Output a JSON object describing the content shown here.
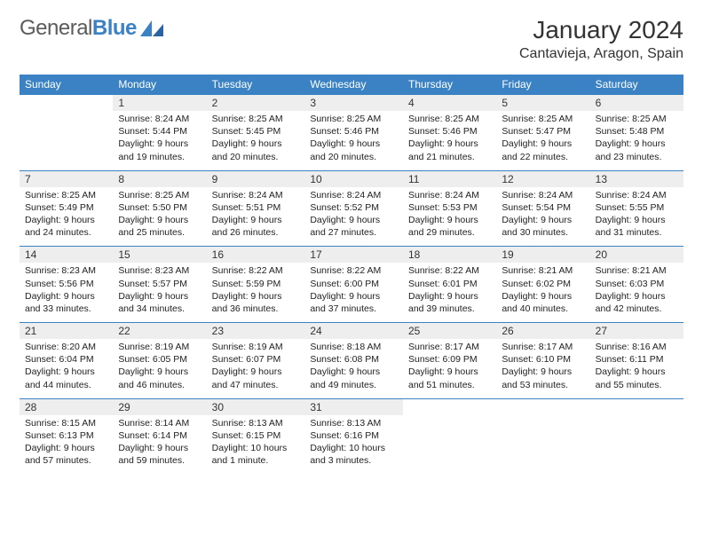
{
  "logo": {
    "text_gray": "General",
    "text_blue": "Blue"
  },
  "title": "January 2024",
  "location": "Cantavieja, Aragon, Spain",
  "colors": {
    "header_bg": "#3b82c4",
    "header_text": "#ffffff",
    "daynum_bg": "#eeeeee",
    "border": "#3b82c4",
    "body_text": "#222222",
    "title_text": "#333333",
    "logo_gray": "#5b5b5b",
    "logo_blue": "#3b82c4",
    "page_bg": "#ffffff"
  },
  "day_headers": [
    "Sunday",
    "Monday",
    "Tuesday",
    "Wednesday",
    "Thursday",
    "Friday",
    "Saturday"
  ],
  "weeks": [
    [
      null,
      {
        "n": "1",
        "sr": "Sunrise: 8:24 AM",
        "ss": "Sunset: 5:44 PM",
        "d1": "Daylight: 9 hours",
        "d2": "and 19 minutes."
      },
      {
        "n": "2",
        "sr": "Sunrise: 8:25 AM",
        "ss": "Sunset: 5:45 PM",
        "d1": "Daylight: 9 hours",
        "d2": "and 20 minutes."
      },
      {
        "n": "3",
        "sr": "Sunrise: 8:25 AM",
        "ss": "Sunset: 5:46 PM",
        "d1": "Daylight: 9 hours",
        "d2": "and 20 minutes."
      },
      {
        "n": "4",
        "sr": "Sunrise: 8:25 AM",
        "ss": "Sunset: 5:46 PM",
        "d1": "Daylight: 9 hours",
        "d2": "and 21 minutes."
      },
      {
        "n": "5",
        "sr": "Sunrise: 8:25 AM",
        "ss": "Sunset: 5:47 PM",
        "d1": "Daylight: 9 hours",
        "d2": "and 22 minutes."
      },
      {
        "n": "6",
        "sr": "Sunrise: 8:25 AM",
        "ss": "Sunset: 5:48 PM",
        "d1": "Daylight: 9 hours",
        "d2": "and 23 minutes."
      }
    ],
    [
      {
        "n": "7",
        "sr": "Sunrise: 8:25 AM",
        "ss": "Sunset: 5:49 PM",
        "d1": "Daylight: 9 hours",
        "d2": "and 24 minutes."
      },
      {
        "n": "8",
        "sr": "Sunrise: 8:25 AM",
        "ss": "Sunset: 5:50 PM",
        "d1": "Daylight: 9 hours",
        "d2": "and 25 minutes."
      },
      {
        "n": "9",
        "sr": "Sunrise: 8:24 AM",
        "ss": "Sunset: 5:51 PM",
        "d1": "Daylight: 9 hours",
        "d2": "and 26 minutes."
      },
      {
        "n": "10",
        "sr": "Sunrise: 8:24 AM",
        "ss": "Sunset: 5:52 PM",
        "d1": "Daylight: 9 hours",
        "d2": "and 27 minutes."
      },
      {
        "n": "11",
        "sr": "Sunrise: 8:24 AM",
        "ss": "Sunset: 5:53 PM",
        "d1": "Daylight: 9 hours",
        "d2": "and 29 minutes."
      },
      {
        "n": "12",
        "sr": "Sunrise: 8:24 AM",
        "ss": "Sunset: 5:54 PM",
        "d1": "Daylight: 9 hours",
        "d2": "and 30 minutes."
      },
      {
        "n": "13",
        "sr": "Sunrise: 8:24 AM",
        "ss": "Sunset: 5:55 PM",
        "d1": "Daylight: 9 hours",
        "d2": "and 31 minutes."
      }
    ],
    [
      {
        "n": "14",
        "sr": "Sunrise: 8:23 AM",
        "ss": "Sunset: 5:56 PM",
        "d1": "Daylight: 9 hours",
        "d2": "and 33 minutes."
      },
      {
        "n": "15",
        "sr": "Sunrise: 8:23 AM",
        "ss": "Sunset: 5:57 PM",
        "d1": "Daylight: 9 hours",
        "d2": "and 34 minutes."
      },
      {
        "n": "16",
        "sr": "Sunrise: 8:22 AM",
        "ss": "Sunset: 5:59 PM",
        "d1": "Daylight: 9 hours",
        "d2": "and 36 minutes."
      },
      {
        "n": "17",
        "sr": "Sunrise: 8:22 AM",
        "ss": "Sunset: 6:00 PM",
        "d1": "Daylight: 9 hours",
        "d2": "and 37 minutes."
      },
      {
        "n": "18",
        "sr": "Sunrise: 8:22 AM",
        "ss": "Sunset: 6:01 PM",
        "d1": "Daylight: 9 hours",
        "d2": "and 39 minutes."
      },
      {
        "n": "19",
        "sr": "Sunrise: 8:21 AM",
        "ss": "Sunset: 6:02 PM",
        "d1": "Daylight: 9 hours",
        "d2": "and 40 minutes."
      },
      {
        "n": "20",
        "sr": "Sunrise: 8:21 AM",
        "ss": "Sunset: 6:03 PM",
        "d1": "Daylight: 9 hours",
        "d2": "and 42 minutes."
      }
    ],
    [
      {
        "n": "21",
        "sr": "Sunrise: 8:20 AM",
        "ss": "Sunset: 6:04 PM",
        "d1": "Daylight: 9 hours",
        "d2": "and 44 minutes."
      },
      {
        "n": "22",
        "sr": "Sunrise: 8:19 AM",
        "ss": "Sunset: 6:05 PM",
        "d1": "Daylight: 9 hours",
        "d2": "and 46 minutes."
      },
      {
        "n": "23",
        "sr": "Sunrise: 8:19 AM",
        "ss": "Sunset: 6:07 PM",
        "d1": "Daylight: 9 hours",
        "d2": "and 47 minutes."
      },
      {
        "n": "24",
        "sr": "Sunrise: 8:18 AM",
        "ss": "Sunset: 6:08 PM",
        "d1": "Daylight: 9 hours",
        "d2": "and 49 minutes."
      },
      {
        "n": "25",
        "sr": "Sunrise: 8:17 AM",
        "ss": "Sunset: 6:09 PM",
        "d1": "Daylight: 9 hours",
        "d2": "and 51 minutes."
      },
      {
        "n": "26",
        "sr": "Sunrise: 8:17 AM",
        "ss": "Sunset: 6:10 PM",
        "d1": "Daylight: 9 hours",
        "d2": "and 53 minutes."
      },
      {
        "n": "27",
        "sr": "Sunrise: 8:16 AM",
        "ss": "Sunset: 6:11 PM",
        "d1": "Daylight: 9 hours",
        "d2": "and 55 minutes."
      }
    ],
    [
      {
        "n": "28",
        "sr": "Sunrise: 8:15 AM",
        "ss": "Sunset: 6:13 PM",
        "d1": "Daylight: 9 hours",
        "d2": "and 57 minutes."
      },
      {
        "n": "29",
        "sr": "Sunrise: 8:14 AM",
        "ss": "Sunset: 6:14 PM",
        "d1": "Daylight: 9 hours",
        "d2": "and 59 minutes."
      },
      {
        "n": "30",
        "sr": "Sunrise: 8:13 AM",
        "ss": "Sunset: 6:15 PM",
        "d1": "Daylight: 10 hours",
        "d2": "and 1 minute."
      },
      {
        "n": "31",
        "sr": "Sunrise: 8:13 AM",
        "ss": "Sunset: 6:16 PM",
        "d1": "Daylight: 10 hours",
        "d2": "and 3 minutes."
      },
      null,
      null,
      null
    ]
  ]
}
